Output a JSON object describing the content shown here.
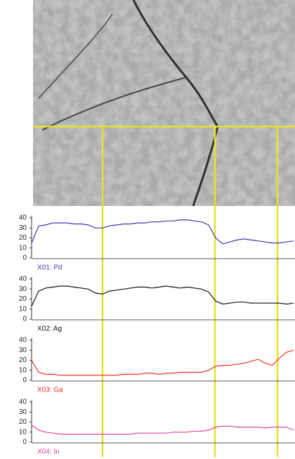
{
  "chart_data": [
    {
      "type": "line",
      "ylim": [
        0,
        40
      ],
      "yticks": [
        0,
        10,
        20,
        30,
        40
      ],
      "series": [
        {
          "name": "X01: Pd",
          "color": "#3a3aa8",
          "values": [
            15,
            32,
            33,
            35,
            35,
            35,
            34,
            34,
            33,
            30,
            30,
            32,
            33,
            34,
            34,
            35,
            35,
            36,
            36,
            37,
            37,
            38,
            38,
            37,
            36,
            33,
            20,
            14,
            16,
            18,
            19,
            18,
            17,
            16,
            15,
            15,
            16,
            17
          ]
        }
      ]
    },
    {
      "type": "line",
      "ylim": [
        0,
        40
      ],
      "yticks": [
        0,
        10,
        20,
        30,
        40
      ],
      "series": [
        {
          "name": "X02: Ag",
          "color": "#111111",
          "values": [
            13,
            28,
            31,
            32,
            33,
            33,
            32,
            31,
            30,
            26,
            25,
            28,
            29,
            30,
            31,
            32,
            32,
            31,
            32,
            33,
            32,
            31,
            32,
            31,
            30,
            27,
            18,
            15,
            16,
            17,
            17,
            16,
            16,
            16,
            16,
            16,
            15,
            16
          ]
        }
      ]
    },
    {
      "type": "line",
      "ylim": [
        0,
        40
      ],
      "yticks": [
        0,
        10,
        20,
        30,
        40
      ],
      "series": [
        {
          "name": "X03: Ga",
          "color": "#e8322a",
          "values": [
            20,
            8,
            6,
            6,
            5,
            5,
            5,
            5,
            5,
            5,
            5,
            5,
            5,
            6,
            6,
            6,
            7,
            7,
            6,
            7,
            7,
            8,
            8,
            8,
            8,
            10,
            14,
            15,
            15,
            16,
            17,
            19,
            21,
            17,
            15,
            22,
            28,
            30
          ]
        }
      ]
    },
    {
      "type": "line",
      "ylim": [
        0,
        40
      ],
      "yticks": [
        0,
        10,
        20,
        30,
        40
      ],
      "series": [
        {
          "name": "X04: In",
          "color": "#d9449a",
          "values": [
            17,
            12,
            10,
            9,
            8,
            8,
            8,
            8,
            8,
            8,
            8,
            8,
            8,
            8,
            8,
            9,
            9,
            9,
            9,
            9,
            10,
            10,
            10,
            11,
            11,
            12,
            15,
            16,
            16,
            15,
            15,
            15,
            15,
            14,
            15,
            15,
            15,
            12
          ]
        }
      ]
    }
  ]
}
